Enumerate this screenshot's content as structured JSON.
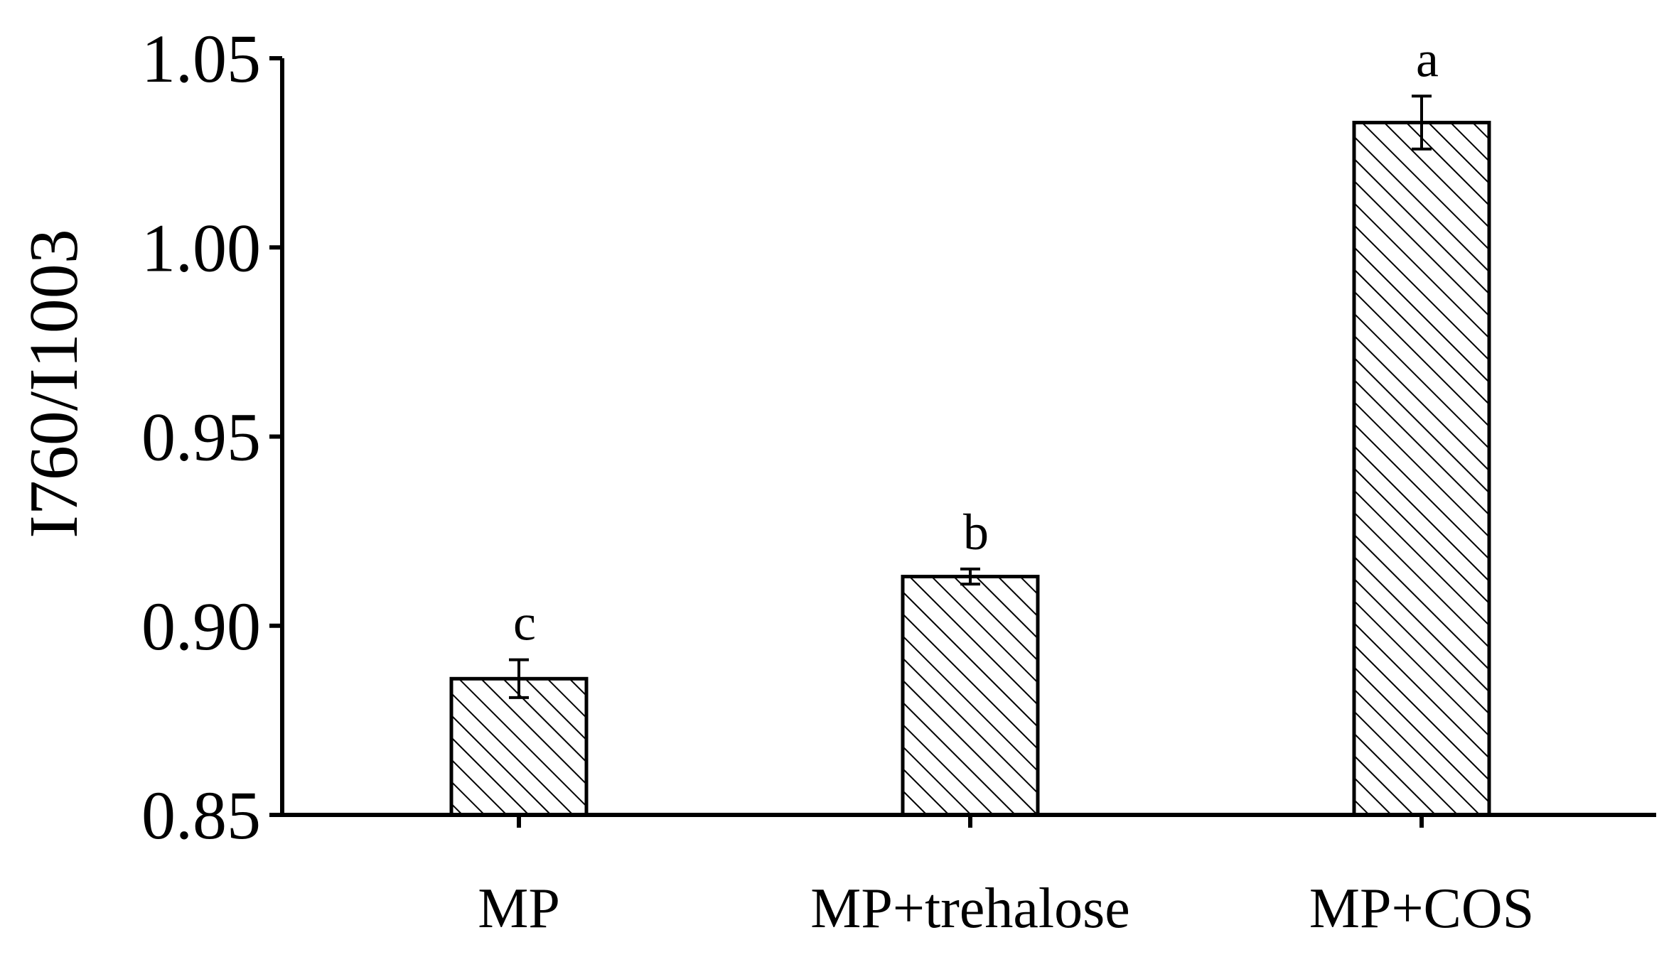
{
  "chart_data": {
    "type": "bar",
    "title": "",
    "xlabel": "",
    "ylabel": "I760/I1003",
    "categories": [
      "MP",
      "MP+trehalose",
      "MP+COS"
    ],
    "values": [
      0.886,
      0.913,
      1.033
    ],
    "errors": [
      0.005,
      0.002,
      0.007
    ],
    "significance_letters": [
      "c",
      "b",
      "a"
    ],
    "ylim": [
      0.85,
      1.05
    ],
    "yticks": [
      0.85,
      0.9,
      0.95,
      1.0,
      1.05
    ],
    "ytick_labels": [
      "0.85",
      "0.90",
      "0.95",
      "1.00",
      "1.05"
    ],
    "grid": false,
    "legend": "none",
    "bar_fill": "hatched",
    "colors": {
      "bar_stroke": "#000000",
      "hatch": "#000000",
      "background": "#ffffff"
    }
  }
}
